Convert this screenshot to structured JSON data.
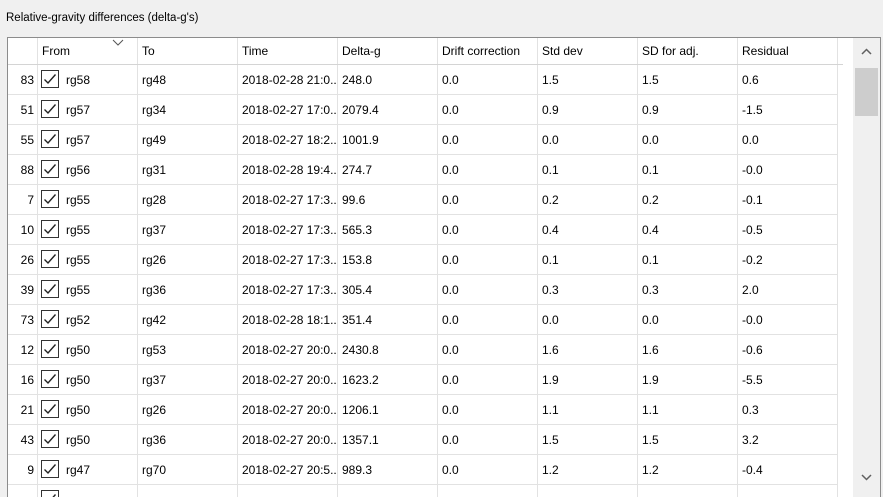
{
  "group_title": "Relative-gravity differences (delta-g's)",
  "columns": [
    "From",
    "To",
    "Time",
    "Delta-g",
    "Drift correction",
    "Std dev",
    "SD for adj.",
    "Residual"
  ],
  "sort_indicator": "descending",
  "rows": [
    {
      "id": "83",
      "checked": true,
      "from": "rg58",
      "to": "rg48",
      "time": "2018-02-28 21:0...",
      "delta_g": "248.0",
      "drift": "0.0",
      "std": "1.5",
      "sd_adj": "1.5",
      "residual": "0.6"
    },
    {
      "id": "51",
      "checked": true,
      "from": "rg57",
      "to": "rg34",
      "time": "2018-02-27 17:0...",
      "delta_g": "2079.4",
      "drift": "0.0",
      "std": "0.9",
      "sd_adj": "0.9",
      "residual": "-1.5"
    },
    {
      "id": "55",
      "checked": true,
      "from": "rg57",
      "to": "rg49",
      "time": "2018-02-27 18:2...",
      "delta_g": "1001.9",
      "drift": "0.0",
      "std": "0.0",
      "sd_adj": "0.0",
      "residual": "0.0"
    },
    {
      "id": "88",
      "checked": true,
      "from": "rg56",
      "to": "rg31",
      "time": "2018-02-28 19:4...",
      "delta_g": "274.7",
      "drift": "0.0",
      "std": "0.1",
      "sd_adj": "0.1",
      "residual": "-0.0"
    },
    {
      "id": "7",
      "checked": true,
      "from": "rg55",
      "to": "rg28",
      "time": "2018-02-27 17:3...",
      "delta_g": "99.6",
      "drift": "0.0",
      "std": "0.2",
      "sd_adj": "0.2",
      "residual": "-0.1"
    },
    {
      "id": "10",
      "checked": true,
      "from": "rg55",
      "to": "rg37",
      "time": "2018-02-27 17:3...",
      "delta_g": "565.3",
      "drift": "0.0",
      "std": "0.4",
      "sd_adj": "0.4",
      "residual": "-0.5"
    },
    {
      "id": "26",
      "checked": true,
      "from": "rg55",
      "to": "rg26",
      "time": "2018-02-27 17:3...",
      "delta_g": "153.8",
      "drift": "0.0",
      "std": "0.1",
      "sd_adj": "0.1",
      "residual": "-0.2"
    },
    {
      "id": "39",
      "checked": true,
      "from": "rg55",
      "to": "rg36",
      "time": "2018-02-27 17:3...",
      "delta_g": "305.4",
      "drift": "0.0",
      "std": "0.3",
      "sd_adj": "0.3",
      "residual": "2.0"
    },
    {
      "id": "73",
      "checked": true,
      "from": "rg52",
      "to": "rg42",
      "time": "2018-02-28 18:1...",
      "delta_g": "351.4",
      "drift": "0.0",
      "std": "0.0",
      "sd_adj": "0.0",
      "residual": "-0.0"
    },
    {
      "id": "12",
      "checked": true,
      "from": "rg50",
      "to": "rg53",
      "time": "2018-02-27 20:0...",
      "delta_g": "2430.8",
      "drift": "0.0",
      "std": "1.6",
      "sd_adj": "1.6",
      "residual": "-0.6"
    },
    {
      "id": "16",
      "checked": true,
      "from": "rg50",
      "to": "rg37",
      "time": "2018-02-27 20:0...",
      "delta_g": "1623.2",
      "drift": "0.0",
      "std": "1.9",
      "sd_adj": "1.9",
      "residual": "-5.5"
    },
    {
      "id": "21",
      "checked": true,
      "from": "rg50",
      "to": "rg26",
      "time": "2018-02-27 20:0...",
      "delta_g": "1206.1",
      "drift": "0.0",
      "std": "1.1",
      "sd_adj": "1.1",
      "residual": "0.3"
    },
    {
      "id": "43",
      "checked": true,
      "from": "rg50",
      "to": "rg36",
      "time": "2018-02-27 20:0...",
      "delta_g": "1357.1",
      "drift": "0.0",
      "std": "1.5",
      "sd_adj": "1.5",
      "residual": "3.2"
    },
    {
      "id": "9",
      "checked": true,
      "from": "rg47",
      "to": "rg70",
      "time": "2018-02-27 20:5...",
      "delta_g": "989.3",
      "drift": "0.0",
      "std": "1.2",
      "sd_adj": "1.2",
      "residual": "-0.4"
    },
    {
      "id": "",
      "checked": true,
      "from": "",
      "to": "",
      "time": "",
      "delta_g": "",
      "drift": "",
      "std": "",
      "sd_adj": "",
      "residual": ""
    }
  ],
  "scrollbar": {
    "up_icon": "chevron-up-icon",
    "down_icon": "chevron-down-icon"
  }
}
